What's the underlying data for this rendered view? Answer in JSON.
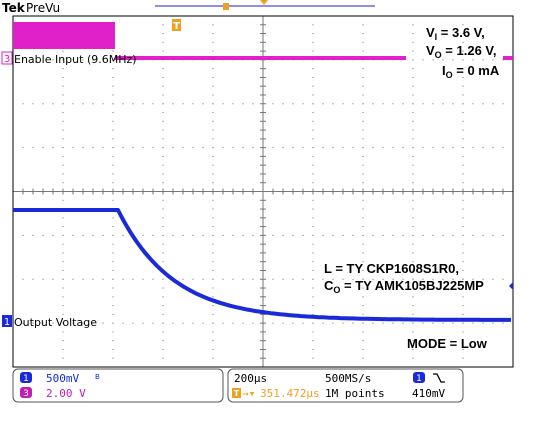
{
  "header": {
    "brand": "Tek",
    "status": "PreVu"
  },
  "channels": {
    "ch3": {
      "number": "3",
      "label": "Enable Input (9.6MHz)",
      "color": "#e020c8"
    },
    "ch1": {
      "number": "1",
      "label": "Output Voltage",
      "color": "#1a2ad8"
    }
  },
  "annotations": {
    "vi_main": "V",
    "vi_sub": "I",
    "vi_val": " = 3.6 V,",
    "vo_main": "V",
    "vo_sub": "O",
    "vo_val": " = 1.26 V,",
    "io_main": "I",
    "io_sub": "O",
    "io_val": " = 0 mA",
    "l_text": "L = TY CKP1608S1R0,",
    "co_main": "C",
    "co_sub": "O",
    "co_val": " = TY AMK105BJ225MP",
    "mode": "MODE = Low"
  },
  "readout": {
    "ch1_scale": "500mV",
    "ch1_bw": "B",
    "ch3_scale": "2.00 V",
    "timebase": "200µs",
    "sample_rate": "500MS/s",
    "trigger_pos": "351.472µs",
    "record_length": "1M points",
    "trigger_source": "1",
    "trigger_level": "410mV"
  },
  "colors": {
    "ch1": "#1a2ad8",
    "ch3": "#e020c8",
    "trigger": "#f0a020",
    "grid": "#000000"
  },
  "icons": [
    "trigger-marker-icon",
    "trigger-slope-falling-icon",
    "ch1-ground-marker-icon",
    "ch3-ground-marker-icon"
  ]
}
